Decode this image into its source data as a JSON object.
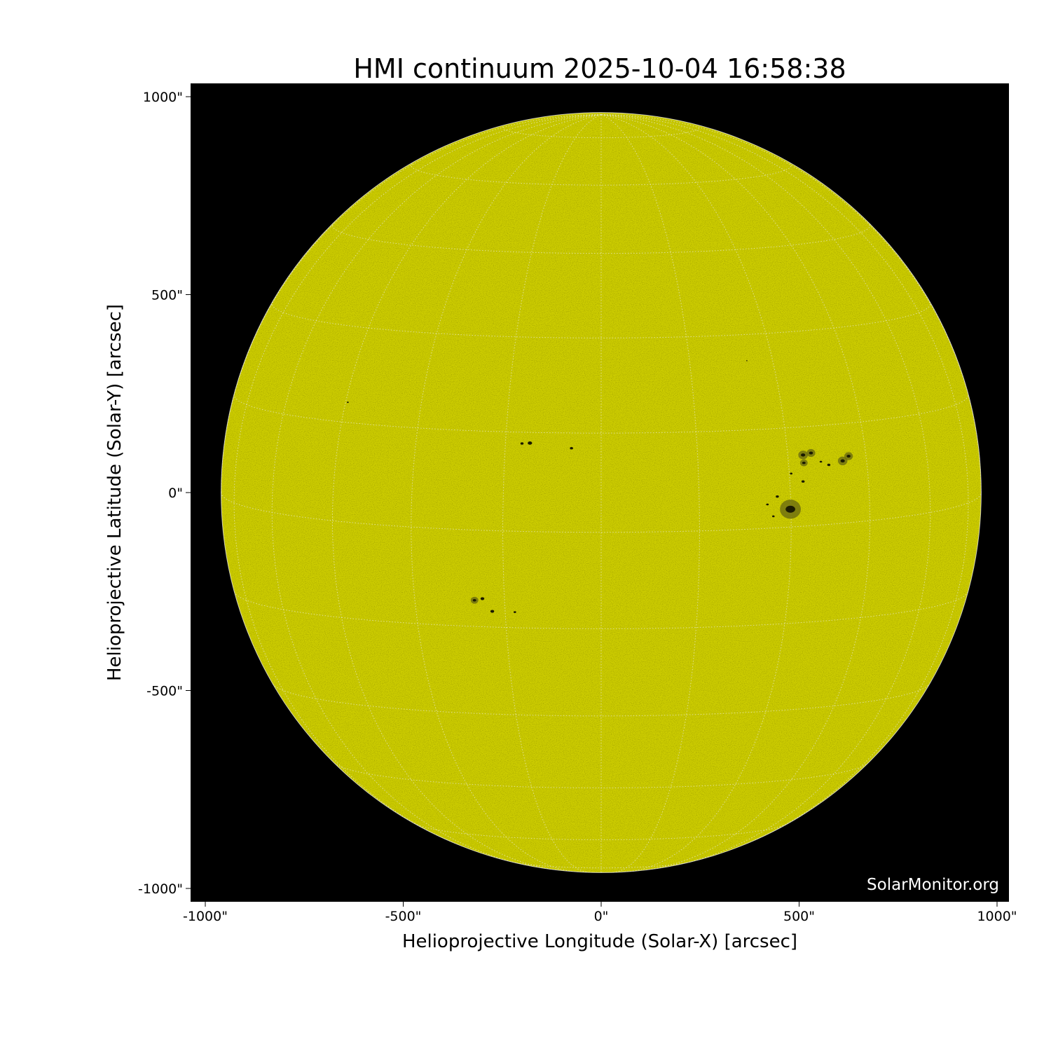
{
  "chart_data": {
    "type": "image",
    "title": "HMI continuum 2025-10-04 16:58:38",
    "xlabel": "Helioprojective Longitude (Solar-X) [arcsec]",
    "ylabel": "Helioprojective Latitude (Solar-Y) [arcsec]",
    "xlim": [
      -1037,
      1030
    ],
    "ylim": [
      -1033,
      1032
    ],
    "xticks": [
      {
        "value": -1000,
        "label": "-1000\""
      },
      {
        "value": -500,
        "label": "-500\""
      },
      {
        "value": 0,
        "label": "0\""
      },
      {
        "value": 500,
        "label": "500\""
      },
      {
        "value": 1000,
        "label": "1000\""
      }
    ],
    "yticks": [
      {
        "value": 1000,
        "label": "1000\""
      },
      {
        "value": 500,
        "label": "500\""
      },
      {
        "value": 0,
        "label": "0\""
      },
      {
        "value": -500,
        "label": "-500\""
      },
      {
        "value": -1000,
        "label": "-1000\""
      }
    ],
    "solar_radius_arcsec": 960,
    "grid": "heliographic, every 15 degrees, dotted white",
    "colors": {
      "disk": "#cccc00",
      "background": "#000000",
      "grid": "#e8e8c8",
      "sunspot": "#1a1a00"
    },
    "sunspots": [
      {
        "x": 478,
        "y": -42,
        "size": 22
      },
      {
        "x": 510,
        "y": 95,
        "size": 10
      },
      {
        "x": 530,
        "y": 100,
        "size": 9
      },
      {
        "x": 512,
        "y": 75,
        "size": 8
      },
      {
        "x": 610,
        "y": 80,
        "size": 10
      },
      {
        "x": 625,
        "y": 92,
        "size": 9
      },
      {
        "x": 575,
        "y": 70,
        "size": 5
      },
      {
        "x": 555,
        "y": 78,
        "size": 4
      },
      {
        "x": 510,
        "y": 28,
        "size": 5
      },
      {
        "x": 480,
        "y": 48,
        "size": 4
      },
      {
        "x": 445,
        "y": -10,
        "size": 5
      },
      {
        "x": 420,
        "y": -30,
        "size": 4
      },
      {
        "x": 435,
        "y": -60,
        "size": 4
      },
      {
        "x": -180,
        "y": 125,
        "size": 7
      },
      {
        "x": -200,
        "y": 124,
        "size": 5
      },
      {
        "x": -75,
        "y": 112,
        "size": 5
      },
      {
        "x": -320,
        "y": -272,
        "size": 8
      },
      {
        "x": -300,
        "y": -268,
        "size": 6
      },
      {
        "x": -275,
        "y": -300,
        "size": 6
      },
      {
        "x": -218,
        "y": -302,
        "size": 4
      },
      {
        "x": -640,
        "y": 228,
        "size": 3
      },
      {
        "x": 368,
        "y": 333,
        "size": 2
      }
    ],
    "watermark": "SolarMonitor.org"
  }
}
